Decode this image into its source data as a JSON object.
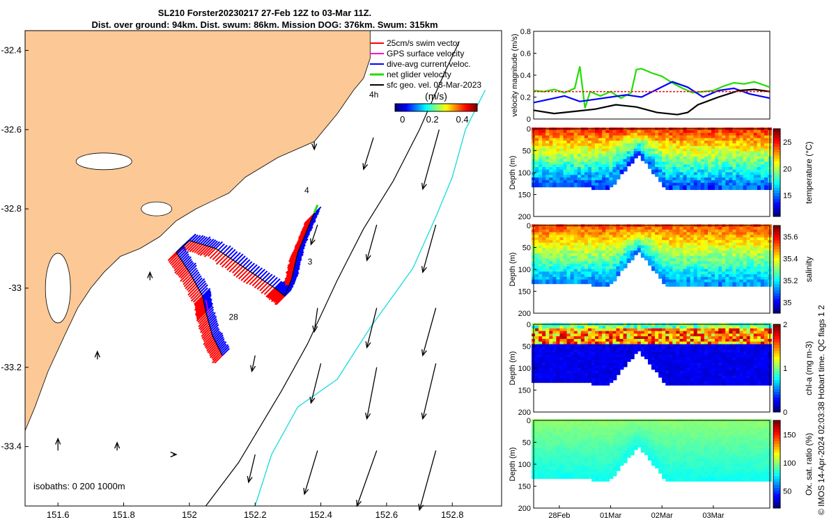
{
  "title_line1": "SL210 Forster20230217 27-Feb 12Z to 03-Mar 11Z.",
  "title_line2": "Dist. over ground: 94km. Dist. swum: 86km. Mission DOG: 376km. Swum: 315km",
  "imos_text": "© IMOS 14-Apr-2024 02:03:38 Hobart time. QC flags 1  2",
  "colors": {
    "land": "#fbc896",
    "swim": "#ff0000",
    "gps": "#ff00cc",
    "current": "#0000ff",
    "net": "#22dd00",
    "geo": "#000000",
    "isobath_200": "#000000",
    "isobath_1000": "#22dddd"
  },
  "chart_data": [
    {
      "type": "map",
      "name": "track-map",
      "xlim": [
        151.5,
        152.95
      ],
      "ylim": [
        -33.55,
        -32.35
      ],
      "xticks": [
        "151.6",
        "151.8",
        "152",
        "152.2",
        "152.4",
        "152.6",
        "152.8"
      ],
      "xtick_values": [
        151.6,
        151.8,
        152.0,
        152.2,
        152.4,
        152.6,
        152.8
      ],
      "yticks": [
        "-32.4",
        "-32.6",
        "-32.8",
        "-33",
        "-33.2",
        "-33.4"
      ],
      "ytick_values": [
        -32.4,
        -32.6,
        -32.8,
        -33.0,
        -33.2,
        -33.4
      ],
      "legend": [
        {
          "label": "25cm/s swim vector",
          "color": "#ff0000"
        },
        {
          "label": "GPS surface velocity",
          "color": "#ff00cc"
        },
        {
          "label": "dive-avg current veloc.",
          "color": "#0000ff"
        },
        {
          "label": "net glider velocity",
          "color": "#22dd00"
        },
        {
          "label": "sfc geo. vel. 03-Mar-2023",
          "color": "#000000"
        }
      ],
      "legend_extra": "4h",
      "colorbar": {
        "label": "(m/s)",
        "ticks": [
          "0",
          "0.2",
          "0.4"
        ],
        "tick_values": [
          0,
          0.2,
          0.4
        ],
        "range": [
          -0.05,
          0.5
        ]
      },
      "annotations": [
        "4",
        "3",
        "28"
      ],
      "annotation_points": [
        [
          152.35,
          -32.76
        ],
        [
          152.36,
          -32.94
        ],
        [
          152.12,
          -33.08
        ]
      ],
      "isobaths_label": "isobaths: 0   200  1000m",
      "track": [
        [
          152.1,
          -33.17
        ],
        [
          152.07,
          -33.12
        ],
        [
          152.05,
          -33.06
        ],
        [
          152.04,
          -33.02
        ],
        [
          152.0,
          -32.96
        ],
        [
          151.96,
          -32.91
        ],
        [
          152.0,
          -32.88
        ],
        [
          152.08,
          -32.9
        ],
        [
          152.17,
          -32.95
        ],
        [
          152.26,
          -33.0
        ],
        [
          152.29,
          -33.02
        ],
        [
          152.31,
          -32.98
        ],
        [
          152.33,
          -32.91
        ],
        [
          152.36,
          -32.85
        ],
        [
          152.38,
          -32.81
        ]
      ],
      "isobath_200": [
        [
          152.05,
          -33.55
        ],
        [
          152.15,
          -33.44
        ],
        [
          152.28,
          -33.26
        ],
        [
          152.36,
          -33.14
        ],
        [
          152.45,
          -32.98
        ],
        [
          152.53,
          -32.85
        ],
        [
          152.62,
          -32.73
        ],
        [
          152.7,
          -32.6
        ],
        [
          152.78,
          -32.45
        ],
        [
          152.82,
          -32.38
        ]
      ],
      "isobath_1000": [
        [
          152.2,
          -33.55
        ],
        [
          152.25,
          -33.42
        ],
        [
          152.33,
          -33.3
        ],
        [
          152.45,
          -33.23
        ],
        [
          152.55,
          -33.1
        ],
        [
          152.68,
          -32.95
        ],
        [
          152.75,
          -32.82
        ],
        [
          152.8,
          -32.72
        ],
        [
          152.84,
          -32.6
        ],
        [
          152.9,
          -32.5
        ]
      ],
      "geo_vectors": [
        [
          152.38,
          -32.63,
          0.0,
          -0.02
        ],
        [
          152.56,
          -32.62,
          -0.03,
          -0.08
        ],
        [
          152.76,
          -32.6,
          -0.05,
          -0.15
        ],
        [
          152.39,
          -32.84,
          -0.02,
          -0.05
        ],
        [
          152.57,
          -32.84,
          -0.03,
          -0.09
        ],
        [
          152.75,
          -32.84,
          -0.04,
          -0.12
        ],
        [
          152.39,
          -33.05,
          -0.01,
          -0.06
        ],
        [
          152.57,
          -33.05,
          -0.03,
          -0.1
        ],
        [
          152.75,
          -33.05,
          -0.04,
          -0.12
        ],
        [
          151.88,
          -32.98,
          0.0,
          0.02
        ],
        [
          152.2,
          -33.17,
          -0.01,
          -0.04
        ],
        [
          152.4,
          -33.19,
          -0.03,
          -0.1
        ],
        [
          152.57,
          -33.2,
          -0.03,
          -0.13
        ],
        [
          152.75,
          -33.19,
          -0.04,
          -0.14
        ],
        [
          151.72,
          -33.18,
          0.0,
          0.02
        ],
        [
          152.2,
          -33.42,
          -0.02,
          -0.07
        ],
        [
          152.39,
          -33.41,
          -0.04,
          -0.11
        ],
        [
          152.57,
          -33.41,
          -0.06,
          -0.14
        ],
        [
          152.75,
          -33.41,
          -0.05,
          -0.15
        ],
        [
          151.6,
          -33.41,
          0.0,
          0.03
        ],
        [
          151.78,
          -33.41,
          0.0,
          0.02
        ],
        [
          151.95,
          -33.42,
          0.01,
          0.0
        ]
      ]
    },
    {
      "type": "line",
      "name": "velocity-magnitude",
      "ylabel": "velocity magnitude (m/s)",
      "ylim": [
        0,
        0.8
      ],
      "yticks": [
        "0",
        "0.2",
        "0.4",
        "0.6",
        "0.8"
      ],
      "tick_values": [
        0,
        0.2,
        0.4,
        0.6,
        0.8
      ],
      "xlim_days": [
        0,
        4.6
      ],
      "series": [
        {
          "color": "#22dd00",
          "x": [
            0,
            0.2,
            0.4,
            0.6,
            0.8,
            0.9,
            1.0,
            1.1,
            1.3,
            1.5,
            1.7,
            1.9,
            2.0,
            2.1,
            2.3,
            2.5,
            2.7,
            2.9,
            3.1,
            3.3,
            3.5,
            3.7,
            3.9,
            4.1,
            4.3,
            4.6
          ],
          "values": [
            0.26,
            0.25,
            0.27,
            0.24,
            0.28,
            0.48,
            0.1,
            0.25,
            0.21,
            0.25,
            0.19,
            0.24,
            0.45,
            0.46,
            0.42,
            0.39,
            0.33,
            0.28,
            0.24,
            0.25,
            0.26,
            0.3,
            0.33,
            0.32,
            0.34,
            0.29
          ]
        },
        {
          "color": "#0000ff",
          "x": [
            0,
            0.3,
            0.6,
            0.9,
            1.2,
            1.5,
            1.8,
            2.1,
            2.4,
            2.7,
            3.0,
            3.3,
            3.6,
            3.9,
            4.2,
            4.6
          ],
          "values": [
            0.15,
            0.18,
            0.21,
            0.16,
            0.18,
            0.2,
            0.22,
            0.2,
            0.27,
            0.34,
            0.29,
            0.2,
            0.26,
            0.28,
            0.23,
            0.19
          ]
        },
        {
          "color": "#000000",
          "x": [
            0,
            0.4,
            0.8,
            1.2,
            1.6,
            2.0,
            2.4,
            2.8,
            3.0,
            3.2,
            3.6,
            4.0,
            4.3,
            4.6
          ],
          "values": [
            0.08,
            0.05,
            0.07,
            0.09,
            0.13,
            0.11,
            0.06,
            0.04,
            0.06,
            0.13,
            0.2,
            0.26,
            0.27,
            0.25
          ]
        },
        {
          "color": "#ff0000",
          "x": [
            0,
            4.6
          ],
          "values": [
            0.25,
            0.25
          ]
        }
      ]
    },
    {
      "type": "heatmap",
      "name": "temperature-section",
      "ylabel": "Depth (m)",
      "yticks": [
        "0",
        "50",
        "100",
        "150",
        "200"
      ],
      "tick_values": [
        0,
        50,
        100,
        150,
        200
      ],
      "colorbar": {
        "label": "temperature (°C)",
        "ticks": [
          "15",
          "20",
          "25"
        ],
        "tick_values": [
          15,
          20,
          25
        ],
        "range": [
          11,
          27.5
        ]
      },
      "surface_value": 25,
      "deep_value": 14,
      "mid_value": 20,
      "dense_top": false
    },
    {
      "type": "heatmap",
      "name": "salinity-section",
      "ylabel": "Depth (m)",
      "yticks": [
        "0",
        "50",
        "100",
        "150",
        "200"
      ],
      "tick_values": [
        0,
        50,
        100,
        150,
        200
      ],
      "colorbar": {
        "label": "salinity",
        "ticks": [
          "35",
          "35.2",
          "35.4",
          "35.6"
        ],
        "tick_values": [
          35,
          35.2,
          35.4,
          35.6
        ],
        "range": [
          34.9,
          35.7
        ]
      },
      "surface_value": 35.55,
      "deep_value": 35.1,
      "mid_value": 35.35,
      "dense_top": false
    },
    {
      "type": "heatmap",
      "name": "chla-section",
      "ylabel": "Depth (m)",
      "yticks": [
        "0",
        "50",
        "100",
        "150",
        "200"
      ],
      "tick_values": [
        0,
        50,
        100,
        150,
        200
      ],
      "colorbar": {
        "label": "chl-a (mg m-3)",
        "ticks": [
          "0",
          "1",
          "2"
        ],
        "tick_values": [
          0,
          1,
          2
        ],
        "range": [
          0,
          2
        ]
      },
      "surface_value": 1.0,
      "deep_value": 0.15,
      "mid_value": 1.9,
      "dense_top": true
    },
    {
      "type": "heatmap",
      "name": "oxygen-section",
      "ylabel": "Depth (m)",
      "yticks": [
        "0",
        "50",
        "100",
        "150",
        "200"
      ],
      "tick_values": [
        0,
        50,
        100,
        150,
        200
      ],
      "colorbar": {
        "label": "Ox. sat. ratio (%)",
        "ticks": [
          "50",
          "100",
          "150"
        ],
        "tick_values": [
          50,
          100,
          150
        ],
        "range": [
          20,
          175
        ]
      },
      "surface_value": 100,
      "deep_value": 80,
      "mid_value": 95,
      "dense_top": false,
      "xticks": [
        "28Feb",
        "01Mar",
        "02Mar",
        "03Mar"
      ],
      "xtick_values_days": [
        0.5,
        1.5,
        2.5,
        3.5
      ]
    }
  ]
}
